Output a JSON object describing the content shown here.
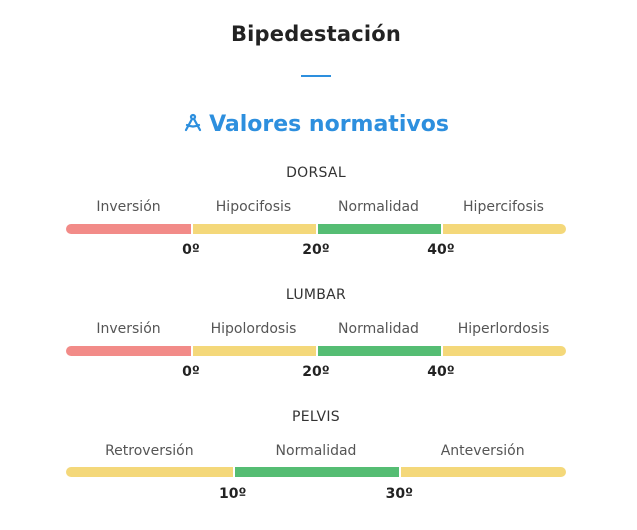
{
  "title": "Bipedestación",
  "subtitle": "Valores normativos",
  "colors": {
    "accent": "#2d8fde",
    "red": "#f28b88",
    "yellow": "#f4d87a",
    "green": "#55bd73"
  },
  "sections": [
    {
      "name": "DORSAL",
      "ranges": [
        {
          "label": "Inversión",
          "color": "#f28b88"
        },
        {
          "label": "Hipocifosis",
          "color": "#f4d87a"
        },
        {
          "label": "Normalidad",
          "color": "#55bd73"
        },
        {
          "label": "Hipercifosis",
          "color": "#f4d87a"
        }
      ],
      "ticks": [
        "0º",
        "20º",
        "40º"
      ]
    },
    {
      "name": "LUMBAR",
      "ranges": [
        {
          "label": "Inversión",
          "color": "#f28b88"
        },
        {
          "label": "Hipolordosis",
          "color": "#f4d87a"
        },
        {
          "label": "Normalidad",
          "color": "#55bd73"
        },
        {
          "label": "Hiperlordosis",
          "color": "#f4d87a"
        }
      ],
      "ticks": [
        "0º",
        "20º",
        "40º"
      ]
    },
    {
      "name": "PELVIS",
      "ranges": [
        {
          "label": "Retroversión",
          "color": "#f4d87a"
        },
        {
          "label": "Normalidad",
          "color": "#55bd73"
        },
        {
          "label": "Anteversión",
          "color": "#f4d87a"
        }
      ],
      "ticks": [
        "10º",
        "30º"
      ]
    }
  ]
}
